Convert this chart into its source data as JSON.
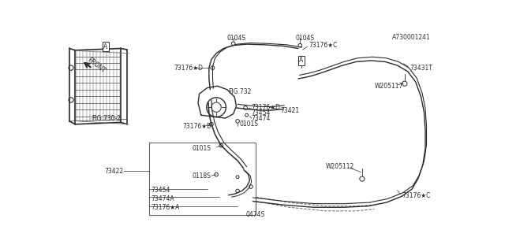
{
  "bg_color": "#ffffff",
  "line_color": "#2a2a2a",
  "fig_width": 6.4,
  "fig_height": 3.2,
  "diagram_id": "A730001241",
  "labels": {
    "73176A": "73176★A",
    "73474A": "73474A",
    "73454_top": "73454",
    "73422": "73422",
    "0118S": "0118S",
    "0101S_top": "0101S",
    "73176B": "73176★B",
    "FIG730": "FIG.730-2",
    "FIG732": "FIG.732",
    "0474S": "0474S",
    "W205112": "W205112",
    "73176C_top": "73176★C",
    "0101S_mid": "0101S",
    "73474_mid": "73474",
    "73454_mid": "73454",
    "73176D_mid": "73176★D",
    "73176D_bot": "73176★D",
    "73421": "73421",
    "W205117": "W205117",
    "73431T": "73431T",
    "0104S_left": "0104S",
    "0104S_right": "0104S",
    "73176C_bot": "73176★C",
    "FRONT": "FRONT"
  }
}
